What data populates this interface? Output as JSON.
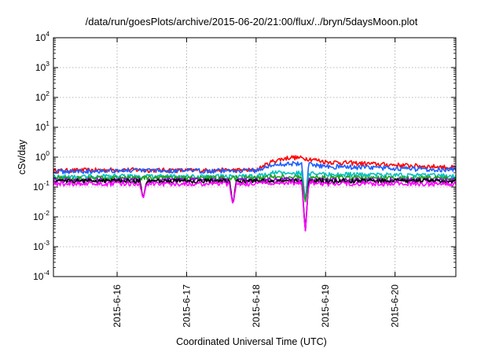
{
  "chart_data": {
    "type": "line",
    "title": "/data/run/goesPlots/archive/2015-06-20/21:00/flux/../bryn/5daysMoon.plot",
    "xlabel": "Coordinated Universal Time (UTC)",
    "ylabel": "cSv/day",
    "yscale": "log",
    "ylim": [
      0.0001,
      10000
    ],
    "xlim": [
      "2015-06-15T02:00",
      "2015-06-20T21:00"
    ],
    "grid": true,
    "legend": "none",
    "x_ticks": [
      "2015-6-16",
      "2015-6-17",
      "2015-6-18",
      "2015-6-19",
      "2015-6-20"
    ],
    "y_ticks": [
      {
        "base": "10",
        "exp": "-4"
      },
      {
        "base": "10",
        "exp": "-3"
      },
      {
        "base": "10",
        "exp": "-2"
      },
      {
        "base": "10",
        "exp": "-1"
      },
      {
        "base": "10",
        "exp": "0"
      },
      {
        "base": "10",
        "exp": "1"
      },
      {
        "base": "10",
        "exp": "2"
      },
      {
        "base": "10",
        "exp": "3"
      },
      {
        "base": "10",
        "exp": "4"
      }
    ],
    "x": [
      "2015-06-15T02:00",
      "2015-06-16T00:00",
      "2015-06-17T00:00",
      "2015-06-18T00:00",
      "2015-06-18T06:00",
      "2015-06-18T12:00",
      "2015-06-18T18:00",
      "2015-06-19T00:00",
      "2015-06-20T00:00",
      "2015-06-20T21:00"
    ],
    "series": [
      {
        "color": "#ff0000",
        "values": [
          0.35,
          0.38,
          0.36,
          0.37,
          0.75,
          1.0,
          0.9,
          0.7,
          0.55,
          0.45
        ]
      },
      {
        "color": "#1f5fff",
        "values": [
          0.33,
          0.36,
          0.35,
          0.36,
          0.55,
          0.62,
          0.58,
          0.5,
          0.42,
          0.38
        ]
      },
      {
        "color": "#00c0c0",
        "values": [
          0.22,
          0.23,
          0.22,
          0.23,
          0.3,
          0.3,
          0.28,
          0.27,
          0.25,
          0.24
        ]
      },
      {
        "color": "#20a020",
        "values": [
          0.2,
          0.2,
          0.2,
          0.2,
          0.22,
          0.22,
          0.21,
          0.21,
          0.2,
          0.2
        ]
      },
      {
        "color": "#9400d3",
        "values": [
          0.17,
          0.17,
          0.17,
          0.17,
          0.18,
          0.18,
          0.18,
          0.17,
          0.17,
          0.17
        ]
      },
      {
        "color": "#000000",
        "values": [
          0.16,
          0.16,
          0.16,
          0.16,
          0.16,
          0.16,
          0.16,
          0.16,
          0.16,
          0.16
        ]
      },
      {
        "color": "#ff00ff",
        "values": [
          0.13,
          0.13,
          0.13,
          0.13,
          0.14,
          0.14,
          0.14,
          0.13,
          0.13,
          0.13
        ]
      }
    ],
    "dips": [
      {
        "x": "2015-06-16T09:00",
        "value": 0.04
      },
      {
        "x": "2015-06-17T16:00",
        "value": 0.025
      },
      {
        "x": "2015-06-18T17:00",
        "value": 0.003
      }
    ]
  }
}
